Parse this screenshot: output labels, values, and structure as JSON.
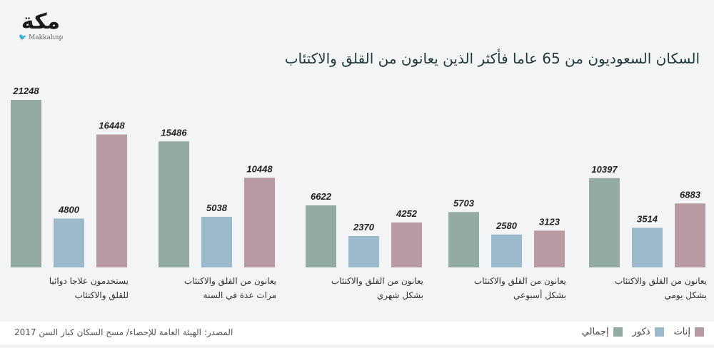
{
  "logo": {
    "text": "مكة",
    "handle": "Makkahnp"
  },
  "title": "السكان السعوديون من 65 عاما فأكثر الذين يعانون من القلق والاكتئاب",
  "source": "المصدر: الهيئة العامة للإحصاء/ مسح السكان كبار السن 2017",
  "colors": {
    "total": "#93aba3",
    "male": "#9dbacd",
    "female": "#b89aa2"
  },
  "chart_data": {
    "type": "bar",
    "title": "السكان السعوديون من 65 عاما فأكثر الذين يعانون من القلق والاكتئاب",
    "categories": [
      [
        "يستخدمون علاجا دوائيا",
        "للقلق والاكتئاب"
      ],
      [
        "يعانون من القلق والاكتئاب",
        "مرات عدة في السنة"
      ],
      [
        "يعانون من القلق والاكتئاب",
        "بشكل شهري"
      ],
      [
        "يعانون من القلق والاكتئاب",
        "بشكل أسبوعي"
      ],
      [
        "يعانون من القلق والاكتئاب",
        "بشكل يومي"
      ]
    ],
    "series": [
      {
        "key": "total",
        "name": "إجمالي",
        "values": [
          21248,
          15486,
          6622,
          5703,
          10397
        ]
      },
      {
        "key": "male",
        "name": "ذكور",
        "values": [
          4800,
          5038,
          2370,
          2580,
          3514
        ]
      },
      {
        "key": "female",
        "name": "إناث",
        "values": [
          16448,
          10448,
          4252,
          3123,
          6883
        ]
      }
    ],
    "legend_order": [
      "female",
      "male",
      "total"
    ],
    "legend_position": "bottom-right",
    "grid": false
  }
}
